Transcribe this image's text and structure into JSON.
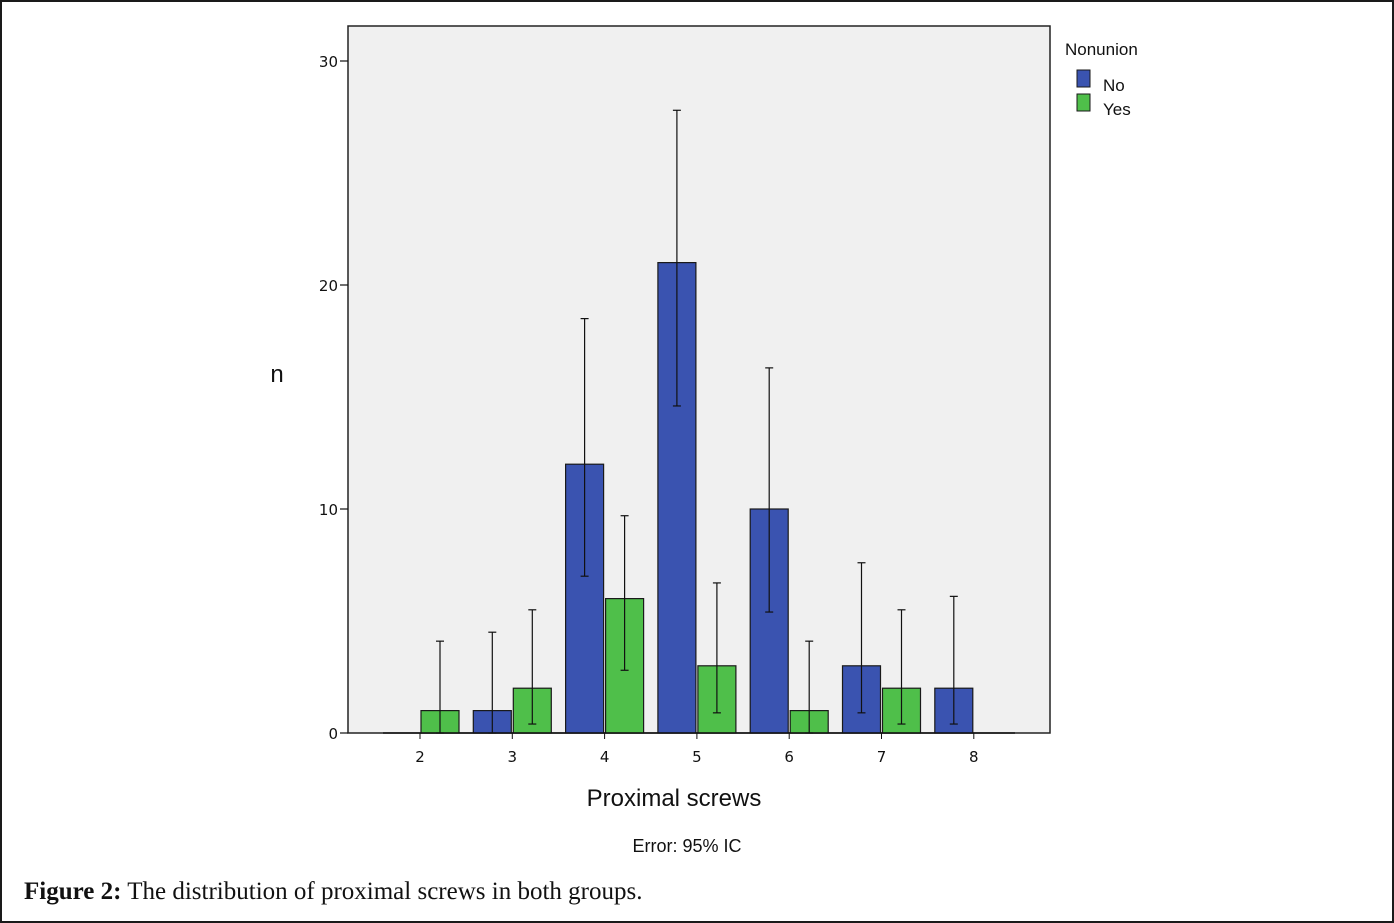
{
  "chart_data": {
    "type": "bar",
    "xlabel": "Proximal screws",
    "ylabel": "n",
    "error_note": "Error: 95% IC",
    "categories": [
      "2",
      "3",
      "4",
      "5",
      "6",
      "7",
      "8"
    ],
    "ylim": [
      0,
      31.5
    ],
    "yticks": [
      "0",
      "10",
      "20",
      "30"
    ],
    "grid": false,
    "legend": {
      "title": "Nonunion",
      "position": "top-right"
    },
    "series": [
      {
        "name": "No",
        "color": "#3a53b0",
        "values": [
          0,
          1,
          12,
          21,
          10,
          3,
          2
        ],
        "error_low": [
          0,
          0,
          7,
          14.6,
          5.4,
          0.9,
          0.4
        ],
        "error_high": [
          0,
          4.5,
          18.5,
          27.8,
          16.3,
          7.6,
          6.1
        ]
      },
      {
        "name": "Yes",
        "color": "#4fbf4a",
        "values": [
          1,
          2,
          6,
          3,
          1,
          2,
          0
        ],
        "error_low": [
          0,
          0.4,
          2.8,
          0.9,
          0,
          0.4,
          0
        ],
        "error_high": [
          4.1,
          5.5,
          9.7,
          6.7,
          4.1,
          5.5,
          0
        ]
      }
    ]
  },
  "caption": {
    "label": "Figure 2:",
    "text": " The distribution of proximal screws in both groups."
  }
}
